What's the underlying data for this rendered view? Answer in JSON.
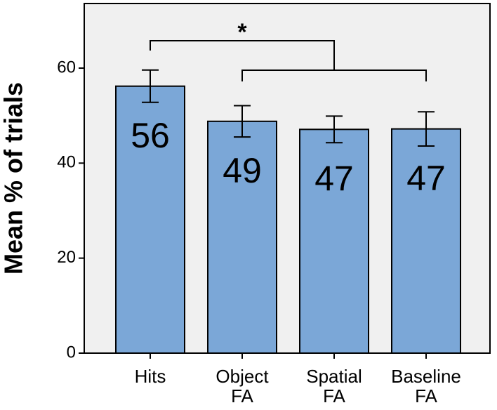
{
  "chart_data": {
    "type": "bar",
    "y_label": "Mean % of trials",
    "categories": [
      "Hits",
      "Object FA",
      "Spatial FA",
      "Baseline FA"
    ],
    "values": [
      56.2,
      48.8,
      47.1,
      47.2
    ],
    "value_labels": [
      "56",
      "49",
      "47",
      "47"
    ],
    "errors": [
      3.4,
      3.3,
      2.8,
      3.6
    ],
    "color": "#7ba7d7",
    "ylim": [
      0,
      73.6
    ],
    "yticks": [
      0,
      20,
      40,
      60
    ],
    "annotation": "*"
  }
}
